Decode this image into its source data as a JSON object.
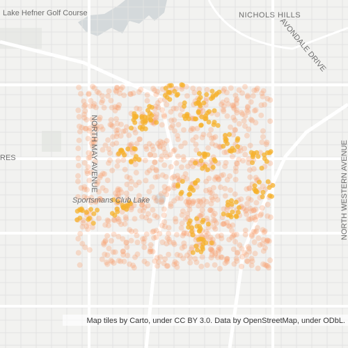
{
  "map": {
    "labels": {
      "golf_course": "Lake Hefner Golf Course",
      "nichols_hills": "NICHOLS HILLS",
      "avondale": "AVONDALE DRIVE",
      "may_avenue": "NORTH MAY AVENUE",
      "western_avenue": "NORTH WESTERN AVENUE",
      "left_edge": "RES",
      "lake": "Sportsmans Club Lake"
    },
    "attribution": "Map tiles by Carto, under CC BY 3.0. Data by OpenStreetMap, under ODbL."
  }
}
